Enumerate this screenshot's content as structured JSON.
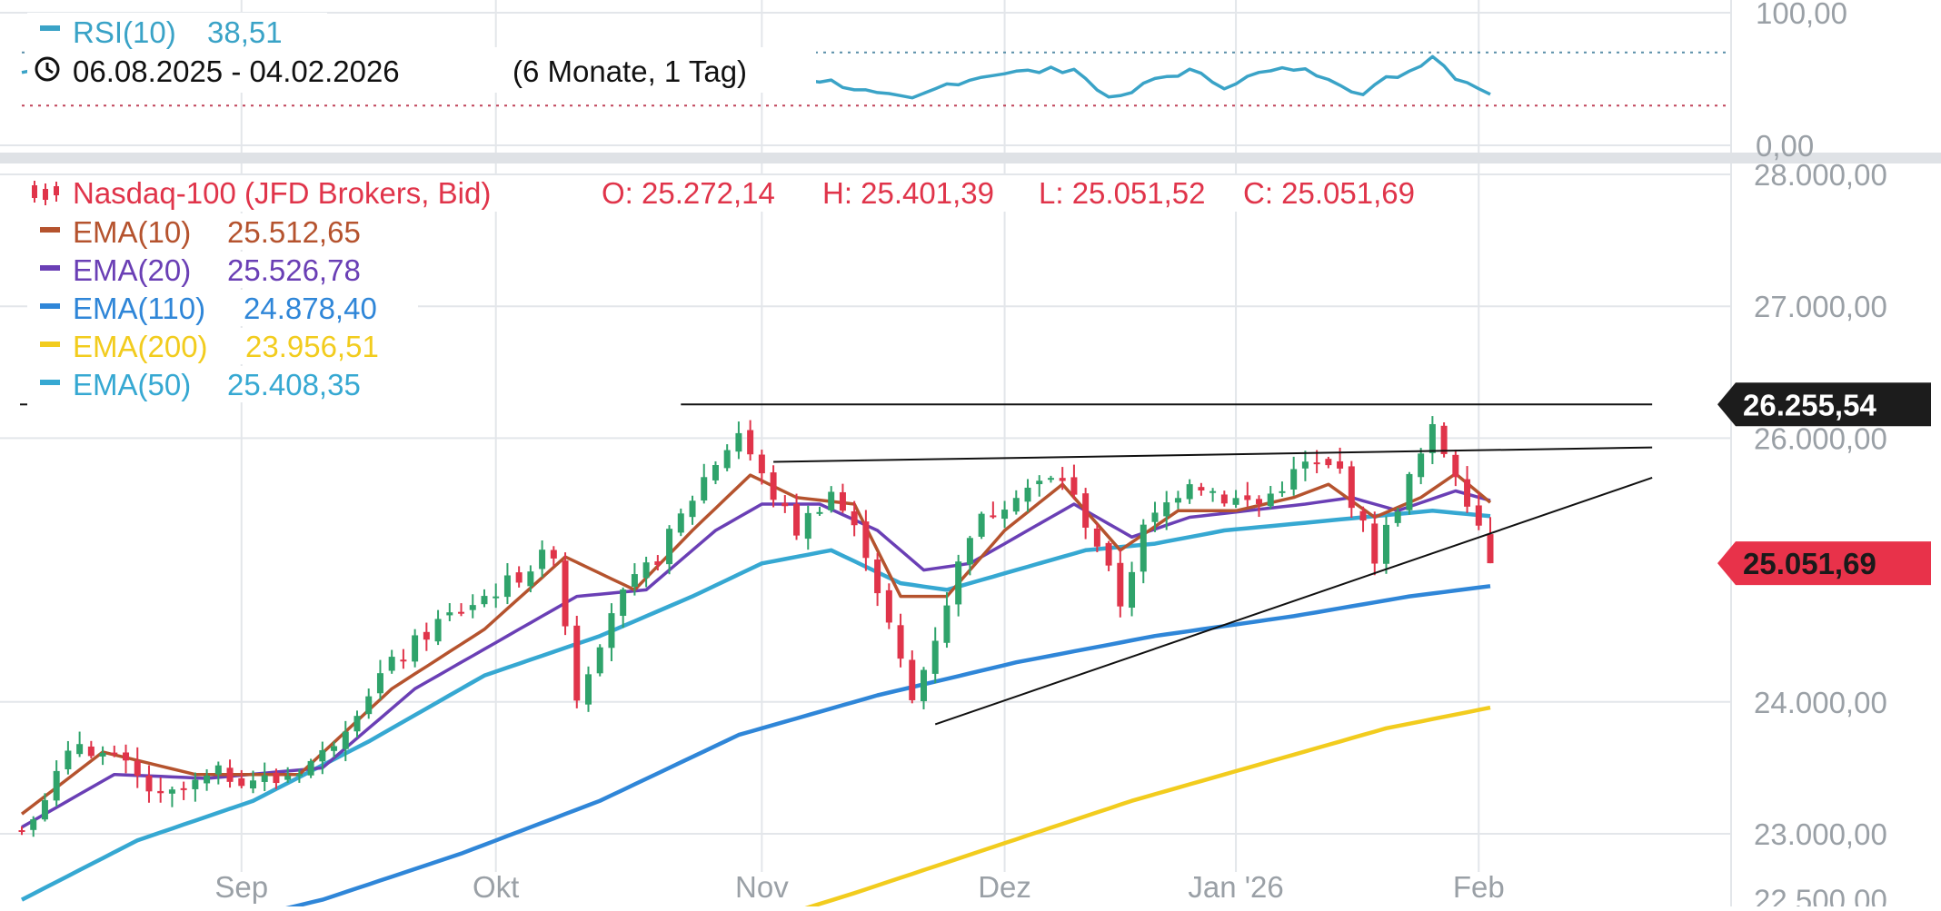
{
  "rsi": {
    "legend_label": "RSI(10)",
    "legend_value": "38,51",
    "date_range": "06.08.2025 - 04.02.2026",
    "period": "(6 Monate, 1 Tag)",
    "axis_ticks": [
      {
        "value": 100,
        "label": "100,00"
      },
      {
        "value": 0,
        "label": "0,00"
      }
    ],
    "upper_band": 70,
    "lower_band": 30,
    "colors": {
      "line": "#3aa3c7",
      "upper_band": "#5a8fa8",
      "lower_band": "#c0445a"
    }
  },
  "price_legend": {
    "instrument": "Nasdaq-100 (JFD Brokers, Bid)",
    "open": "O: 25.272,14",
    "high": "H: 25.401,39",
    "low": "L: 25.051,52",
    "close": "C: 25.051,69",
    "color": "#e0344a"
  },
  "ema_legend": [
    {
      "label": "EMA(10)",
      "value": "25.512,65",
      "color": "#b5532e"
    },
    {
      "label": "EMA(20)",
      "value": "25.526,78",
      "color": "#6a3fb5"
    },
    {
      "label": "EMA(110)",
      "value": "24.878,40",
      "color": "#2f86d8"
    },
    {
      "label": "EMA(200)",
      "value": "23.956,51",
      "color": "#f2cc1e"
    },
    {
      "label": "EMA(50)",
      "value": "25.408,35",
      "color": "#36a8d2"
    }
  ],
  "price_axis": {
    "ticks": [
      {
        "value": 28000,
        "label": "28.000,00"
      },
      {
        "value": 27000,
        "label": "27.000,00"
      },
      {
        "value": 26000,
        "label": "26.000,00"
      },
      {
        "value": 24000,
        "label": "24.000,00"
      },
      {
        "value": 23000,
        "label": "23.000,00"
      },
      {
        "value": 22500,
        "label": "22.500,00"
      }
    ],
    "badges": [
      {
        "value": 26255.54,
        "label": "26.255,54",
        "bg": "#1c1c1c",
        "fg": "#ffffff"
      },
      {
        "value": 25051.69,
        "label": "25.051,69",
        "bg": "#e8324a",
        "fg": "#1a1a1a"
      }
    ]
  },
  "x_axis": {
    "labels": [
      {
        "index": 19,
        "label": "Sep"
      },
      {
        "index": 41,
        "label": "Okt"
      },
      {
        "index": 64,
        "label": "Nov"
      },
      {
        "index": 85,
        "label": "Dez"
      },
      {
        "index": 105,
        "label": "Jan '26"
      },
      {
        "index": 126,
        "label": "Feb"
      }
    ]
  },
  "chart_data": {
    "type": "candlestick",
    "title": "Nasdaq-100 (JFD Brokers, Bid)",
    "x_range": [
      "06.08.2025",
      "04.02.2026"
    ],
    "ylim": [
      22400,
      28200
    ],
    "rsi_ylim": [
      0,
      100
    ],
    "grid": true,
    "colors": {
      "up": "#2fa36b",
      "down": "#e0344a"
    },
    "price_keypoints": [
      {
        "i": 0,
        "v": 23050
      },
      {
        "i": 5,
        "v": 23700
      },
      {
        "i": 9,
        "v": 23500
      },
      {
        "i": 12,
        "v": 23250
      },
      {
        "i": 17,
        "v": 23450
      },
      {
        "i": 22,
        "v": 23400
      },
      {
        "i": 26,
        "v": 23600
      },
      {
        "i": 31,
        "v": 24200
      },
      {
        "i": 36,
        "v": 24600
      },
      {
        "i": 42,
        "v": 24900
      },
      {
        "i": 46,
        "v": 25150
      },
      {
        "i": 48,
        "v": 24050
      },
      {
        "i": 51,
        "v": 24700
      },
      {
        "i": 55,
        "v": 25100
      },
      {
        "i": 59,
        "v": 25700
      },
      {
        "i": 62,
        "v": 26050
      },
      {
        "i": 64,
        "v": 25700
      },
      {
        "i": 67,
        "v": 25300
      },
      {
        "i": 70,
        "v": 25600
      },
      {
        "i": 73,
        "v": 25150
      },
      {
        "i": 77,
        "v": 24000
      },
      {
        "i": 79,
        "v": 24500
      },
      {
        "i": 82,
        "v": 25300
      },
      {
        "i": 86,
        "v": 25600
      },
      {
        "i": 90,
        "v": 25700
      },
      {
        "i": 93,
        "v": 25200
      },
      {
        "i": 95,
        "v": 24750
      },
      {
        "i": 97,
        "v": 25300
      },
      {
        "i": 101,
        "v": 25700
      },
      {
        "i": 104,
        "v": 25550
      },
      {
        "i": 107,
        "v": 25500
      },
      {
        "i": 111,
        "v": 25800
      },
      {
        "i": 114,
        "v": 25750
      },
      {
        "i": 117,
        "v": 25100
      },
      {
        "i": 119,
        "v": 25500
      },
      {
        "i": 122,
        "v": 26050
      },
      {
        "i": 124,
        "v": 25750
      },
      {
        "i": 126,
        "v": 25350
      },
      {
        "i": 127,
        "v": 25051.69
      }
    ],
    "last_candle": {
      "open": 25272.14,
      "high": 25401.39,
      "low": 25051.52,
      "close": 25051.69
    },
    "ema_series": [
      {
        "name": "EMA(10)",
        "color": "#b5532e",
        "points": [
          {
            "i": 0,
            "v": 23150
          },
          {
            "i": 7,
            "v": 23620
          },
          {
            "i": 15,
            "v": 23450
          },
          {
            "i": 24,
            "v": 23450
          },
          {
            "i": 32,
            "v": 24100
          },
          {
            "i": 40,
            "v": 24550
          },
          {
            "i": 47,
            "v": 25100
          },
          {
            "i": 53,
            "v": 24850
          },
          {
            "i": 58,
            "v": 25300
          },
          {
            "i": 63,
            "v": 25720
          },
          {
            "i": 67,
            "v": 25550
          },
          {
            "i": 72,
            "v": 25500
          },
          {
            "i": 76,
            "v": 24800
          },
          {
            "i": 80,
            "v": 24800
          },
          {
            "i": 85,
            "v": 25300
          },
          {
            "i": 90,
            "v": 25650
          },
          {
            "i": 95,
            "v": 25150
          },
          {
            "i": 100,
            "v": 25450
          },
          {
            "i": 105,
            "v": 25450
          },
          {
            "i": 110,
            "v": 25550
          },
          {
            "i": 113,
            "v": 25650
          },
          {
            "i": 117,
            "v": 25400
          },
          {
            "i": 121,
            "v": 25550
          },
          {
            "i": 124,
            "v": 25730
          },
          {
            "i": 127,
            "v": 25512.65
          }
        ]
      },
      {
        "name": "EMA(20)",
        "color": "#6a3fb5",
        "points": [
          {
            "i": 0,
            "v": 23050
          },
          {
            "i": 8,
            "v": 23450
          },
          {
            "i": 16,
            "v": 23420
          },
          {
            "i": 26,
            "v": 23500
          },
          {
            "i": 34,
            "v": 24100
          },
          {
            "i": 42,
            "v": 24500
          },
          {
            "i": 48,
            "v": 24800
          },
          {
            "i": 54,
            "v": 24850
          },
          {
            "i": 60,
            "v": 25300
          },
          {
            "i": 64,
            "v": 25500
          },
          {
            "i": 69,
            "v": 25500
          },
          {
            "i": 74,
            "v": 25300
          },
          {
            "i": 78,
            "v": 25000
          },
          {
            "i": 82,
            "v": 25050
          },
          {
            "i": 87,
            "v": 25300
          },
          {
            "i": 91,
            "v": 25500
          },
          {
            "i": 96,
            "v": 25250
          },
          {
            "i": 101,
            "v": 25400
          },
          {
            "i": 106,
            "v": 25450
          },
          {
            "i": 111,
            "v": 25500
          },
          {
            "i": 115,
            "v": 25550
          },
          {
            "i": 119,
            "v": 25450
          },
          {
            "i": 124,
            "v": 25600
          },
          {
            "i": 127,
            "v": 25526.78
          }
        ]
      },
      {
        "name": "EMA(50)",
        "color": "#36a8d2",
        "points": [
          {
            "i": 0,
            "v": 22500
          },
          {
            "i": 10,
            "v": 22950
          },
          {
            "i": 20,
            "v": 23250
          },
          {
            "i": 30,
            "v": 23700
          },
          {
            "i": 40,
            "v": 24200
          },
          {
            "i": 50,
            "v": 24500
          },
          {
            "i": 58,
            "v": 24800
          },
          {
            "i": 64,
            "v": 25050
          },
          {
            "i": 70,
            "v": 25150
          },
          {
            "i": 76,
            "v": 24900
          },
          {
            "i": 80,
            "v": 24850
          },
          {
            "i": 86,
            "v": 25000
          },
          {
            "i": 92,
            "v": 25150
          },
          {
            "i": 98,
            "v": 25200
          },
          {
            "i": 104,
            "v": 25300
          },
          {
            "i": 110,
            "v": 25350
          },
          {
            "i": 116,
            "v": 25400
          },
          {
            "i": 122,
            "v": 25450
          },
          {
            "i": 127,
            "v": 25408.35
          }
        ]
      },
      {
        "name": "EMA(110)",
        "color": "#2f86d8",
        "points": [
          {
            "i": 14,
            "v": 22250
          },
          {
            "i": 26,
            "v": 22500
          },
          {
            "i": 38,
            "v": 22850
          },
          {
            "i": 50,
            "v": 23250
          },
          {
            "i": 62,
            "v": 23750
          },
          {
            "i": 74,
            "v": 24050
          },
          {
            "i": 86,
            "v": 24300
          },
          {
            "i": 98,
            "v": 24500
          },
          {
            "i": 110,
            "v": 24650
          },
          {
            "i": 120,
            "v": 24800
          },
          {
            "i": 127,
            "v": 24878.4
          }
        ]
      },
      {
        "name": "EMA(200)",
        "color": "#f2cc1e",
        "points": [
          {
            "i": 61,
            "v": 22250
          },
          {
            "i": 72,
            "v": 22550
          },
          {
            "i": 84,
            "v": 22900
          },
          {
            "i": 96,
            "v": 23250
          },
          {
            "i": 108,
            "v": 23550
          },
          {
            "i": 118,
            "v": 23800
          },
          {
            "i": 127,
            "v": 23956.51
          }
        ]
      }
    ],
    "rsi_series": {
      "name": "RSI(10)",
      "points": [
        {
          "i": 0,
          "v": 55
        },
        {
          "i": 4,
          "v": 60
        },
        {
          "i": 8,
          "v": 52
        },
        {
          "i": 12,
          "v": 48
        },
        {
          "i": 16,
          "v": 55
        },
        {
          "i": 20,
          "v": 60
        },
        {
          "i": 24,
          "v": 72
        },
        {
          "i": 28,
          "v": 66
        },
        {
          "i": 32,
          "v": 62
        },
        {
          "i": 36,
          "v": 70
        },
        {
          "i": 40,
          "v": 66
        },
        {
          "i": 44,
          "v": 62
        },
        {
          "i": 48,
          "v": 45
        },
        {
          "i": 52,
          "v": 58
        },
        {
          "i": 56,
          "v": 62
        },
        {
          "i": 60,
          "v": 68
        },
        {
          "i": 63,
          "v": 62
        },
        {
          "i": 66,
          "v": 52
        },
        {
          "i": 70,
          "v": 48
        },
        {
          "i": 74,
          "v": 38
        },
        {
          "i": 77,
          "v": 34
        },
        {
          "i": 80,
          "v": 46
        },
        {
          "i": 84,
          "v": 54
        },
        {
          "i": 88,
          "v": 56
        },
        {
          "i": 91,
          "v": 58
        },
        {
          "i": 93,
          "v": 42
        },
        {
          "i": 95,
          "v": 35
        },
        {
          "i": 98,
          "v": 50
        },
        {
          "i": 101,
          "v": 56
        },
        {
          "i": 104,
          "v": 45
        },
        {
          "i": 107,
          "v": 54
        },
        {
          "i": 110,
          "v": 58
        },
        {
          "i": 113,
          "v": 52
        },
        {
          "i": 116,
          "v": 38
        },
        {
          "i": 118,
          "v": 50
        },
        {
          "i": 120,
          "v": 56
        },
        {
          "i": 122,
          "v": 68
        },
        {
          "i": 124,
          "v": 52
        },
        {
          "i": 126,
          "v": 44
        },
        {
          "i": 127,
          "v": 38.51
        }
      ]
    },
    "trendlines": [
      {
        "name": "resistance",
        "from": {
          "i": 57,
          "v": 26255.54
        },
        "to": {
          "i": 141,
          "v": 26255.54
        }
      },
      {
        "name": "triangle-top",
        "from": {
          "i": 65,
          "v": 25820
        },
        "to": {
          "i": 141,
          "v": 25930
        }
      },
      {
        "name": "triangle-bottom",
        "from": {
          "i": 79,
          "v": 23830
        },
        "to": {
          "i": 141,
          "v": 25700
        }
      }
    ]
  }
}
